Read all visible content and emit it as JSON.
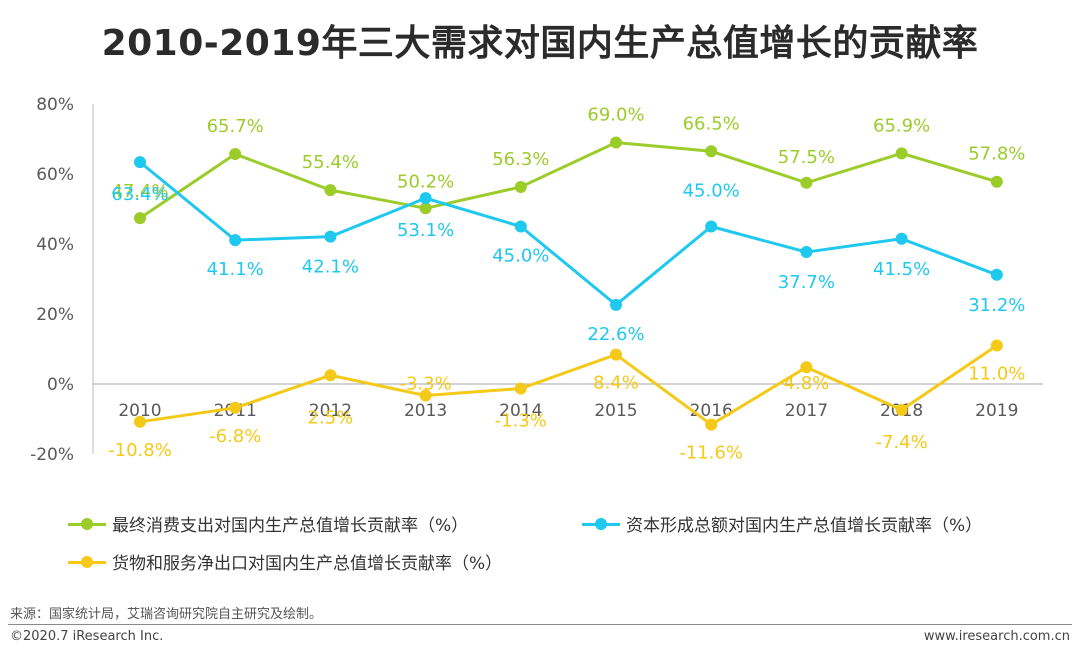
{
  "title": "2010-2019年三大需求对国内生产总值增长的贡献率",
  "chart_data": {
    "type": "line",
    "title": "2010-2019年三大需求对国内生产总值增长的贡献率",
    "categories": [
      "2010",
      "2011",
      "2012",
      "2013",
      "2014",
      "2015",
      "2016",
      "2017",
      "2018",
      "2019"
    ],
    "yticks": [
      "80%",
      "60%",
      "40%",
      "20%",
      "0%",
      "-20%"
    ],
    "ytick_values": [
      80,
      60,
      40,
      20,
      0,
      -20
    ],
    "ylim": [
      -20,
      80
    ],
    "xlabel": "",
    "ylabel": "",
    "grid": false,
    "series": [
      {
        "name": "最终消费支出对国内生产总值增长贡献率（%）",
        "color": "#9ccc2a",
        "values": [
          47.4,
          65.7,
          55.4,
          50.2,
          56.3,
          69.0,
          66.5,
          57.5,
          65.9,
          57.8
        ],
        "labels": [
          "47.4%",
          "65.7%",
          "55.4%",
          "50.2%",
          "56.3%",
          "69.0%",
          "66.5%",
          "57.5%",
          "65.9%",
          "57.8%"
        ]
      },
      {
        "name": "资本形成总额对国内生产总值增长贡献率（%）",
        "color": "#1ec8ee",
        "values": [
          63.4,
          41.1,
          42.1,
          53.1,
          45.0,
          22.6,
          45.0,
          37.7,
          41.5,
          31.2
        ],
        "labels": [
          "63.4%",
          "41.1%",
          "42.1%",
          "53.1%",
          "45.0%",
          "22.6%",
          "45.0%",
          "37.7%",
          "41.5%",
          "31.2%"
        ]
      },
      {
        "name": "货物和服务净出口对国内生产总值增长贡献率（%）",
        "color": "#f5c917",
        "values": [
          -10.8,
          -6.8,
          2.5,
          -3.3,
          -1.3,
          8.4,
          -11.6,
          4.8,
          -7.4,
          11.0
        ],
        "labels": [
          "-10.8%",
          "-6.8%",
          "2.5%",
          "-3.3%",
          "-1.3%",
          "8.4%",
          "-11.6%",
          "4.8%",
          "-7.4%",
          "11.0%"
        ]
      }
    ],
    "legend": "bottom"
  },
  "footer": {
    "source": "来源：国家统计局，艾瑞咨询研究院自主研究及绘制。",
    "copyright": "©2020.7 iResearch Inc.",
    "website": "www.iresearch.com.cn"
  }
}
